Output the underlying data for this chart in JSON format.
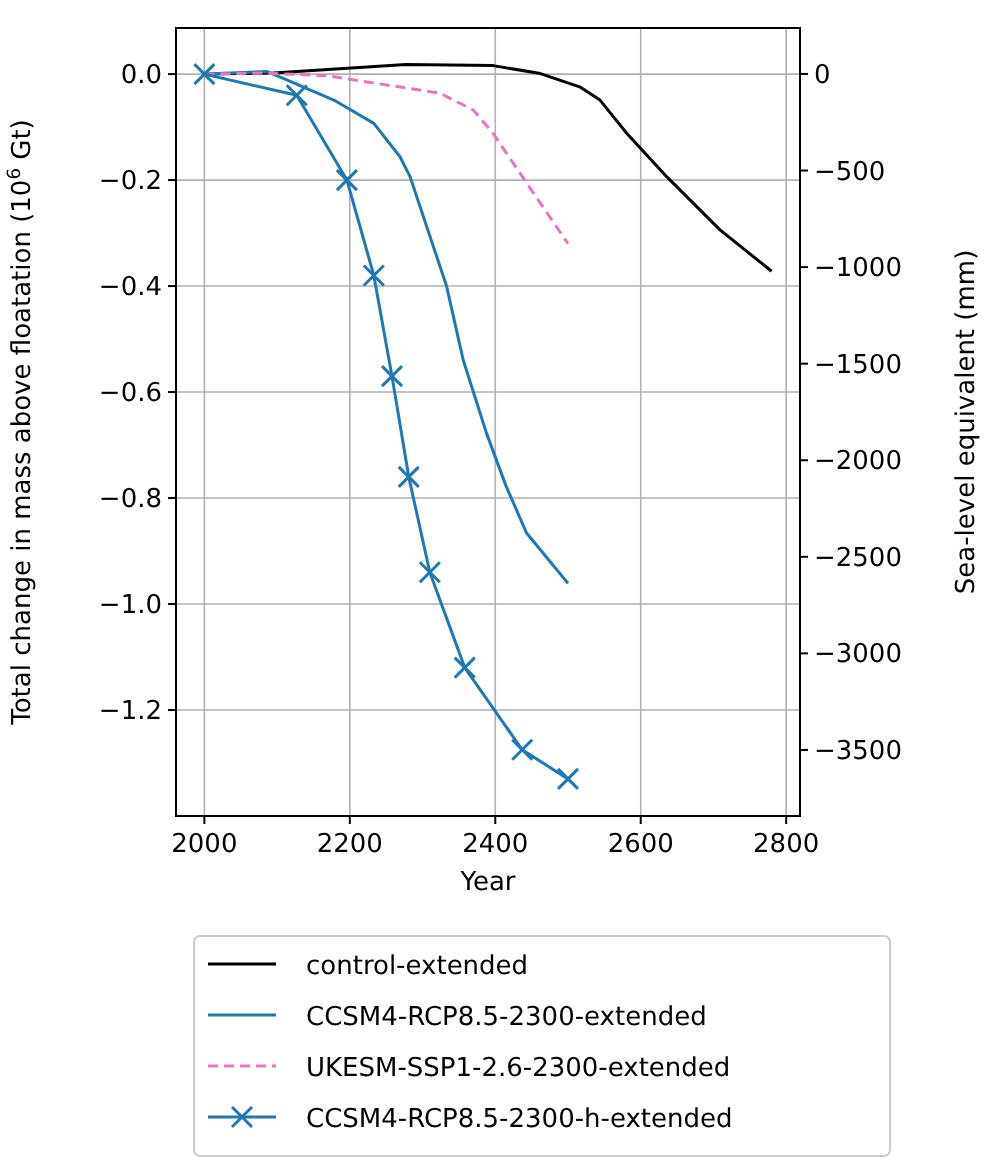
{
  "chart_data": {
    "type": "line",
    "xlabel": "Year",
    "ylabel": "Total change in mass above floatation (10$^{6}$ Gt)",
    "y2label": "Sea-level equivalent (mm)",
    "xlim": [
      1961,
      2819
    ],
    "xticks": [
      2000,
      2200,
      2400,
      2600,
      2800
    ],
    "ylim": [
      -1.4,
      0.087
    ],
    "yticks": [
      {
        "value": -1.2,
        "label": "−1.2"
      },
      {
        "value": -1.0,
        "label": "−1.0"
      },
      {
        "value": -0.8,
        "label": "−0.8"
      },
      {
        "value": -0.6,
        "label": "−0.6"
      },
      {
        "value": -0.4,
        "label": "−0.4"
      },
      {
        "value": -0.2,
        "label": "−0.2"
      },
      {
        "value": 0,
        "label": "0.0"
      }
    ],
    "y2lim": [
      -3842,
      238
    ],
    "y2ticks": [
      {
        "value": -3500,
        "label": "−3500"
      },
      {
        "value": -3000,
        "label": "−3000"
      },
      {
        "value": -2500,
        "label": "−2500"
      },
      {
        "value": -2000,
        "label": "−2000"
      },
      {
        "value": -1500,
        "label": "−1500"
      },
      {
        "value": -1000,
        "label": "−1000"
      },
      {
        "value": -500,
        "label": "−500"
      },
      0
    ],
    "grid": true,
    "legend": "bottom",
    "series": [
      {
        "name": "control-extended",
        "color": "#000000",
        "line_style": "solid",
        "marker": "none",
        "x": [
          2000,
          2095,
          2277,
          2397,
          2462,
          2516,
          2544,
          2581,
          2636,
          2709,
          2780
        ],
        "values": [
          0,
          0.002,
          0.018,
          0.016,
          0.001,
          -0.024,
          -0.049,
          -0.112,
          -0.194,
          -0.294,
          -0.372
        ]
      },
      {
        "name": "CCSM4-RCP8.5-2300-extended",
        "color": "#1f77b4",
        "line_style": "solid",
        "marker": "none",
        "x": [
          2000,
          2086,
          2178,
          2233,
          2269,
          2283,
          2333,
          2356,
          2388,
          2415,
          2443,
          2500
        ],
        "values": [
          0,
          0.005,
          -0.049,
          -0.093,
          -0.156,
          -0.194,
          -0.4,
          -0.54,
          -0.678,
          -0.778,
          -0.866,
          -0.961
        ]
      },
      {
        "name": "UKESM-SSP1-2.6-2300-extended",
        "color": "#e377c2",
        "line_style": "dashed",
        "marker": "none",
        "x": [
          2000,
          2080,
          2168,
          2324,
          2370,
          2397,
          2434,
          2500
        ],
        "values": [
          0,
          0.002,
          -0.003,
          -0.036,
          -0.068,
          -0.112,
          -0.187,
          -0.32
        ]
      },
      {
        "name": "CCSM4-RCP8.5-2300-h-extended",
        "color": "#1f77b4",
        "line_style": "solid",
        "marker": "cross",
        "x": [
          2000,
          2127,
          2196,
          2233,
          2258,
          2281,
          2310,
          2358,
          2437,
          2500
        ],
        "values": [
          0,
          -0.04,
          -0.2,
          -0.38,
          -0.57,
          -0.76,
          -0.94,
          -1.12,
          -1.275,
          -1.33
        ]
      }
    ]
  }
}
